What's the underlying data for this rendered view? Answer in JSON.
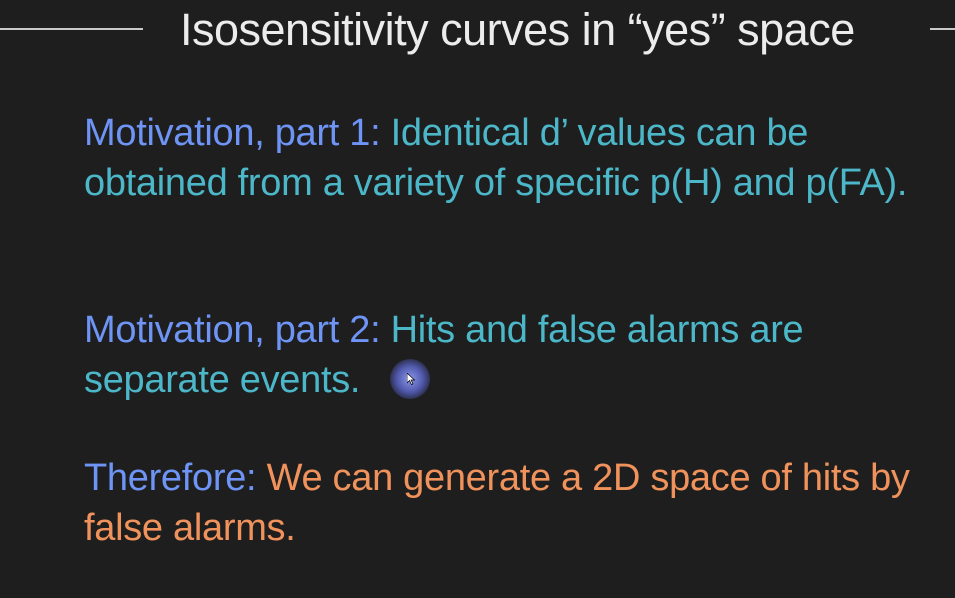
{
  "slide": {
    "title": "Isosensitivity curves in “yes” space",
    "paragraphs": [
      {
        "lead": "Motivation, part 1:",
        "body": "Identical d’ values can be obtained from a variety of specific p(H) and p(FA)."
      },
      {
        "lead": "Motivation, part 2:",
        "body": "Hits and false alarms are separate events."
      },
      {
        "lead": "Therefore:",
        "body": "We can generate a 2D space of hits by false alarms."
      }
    ]
  },
  "colors": {
    "background": "#1e1e1e",
    "title": "#ececec",
    "lead": "#6e94f5",
    "teal": "#4bb7c8",
    "orange": "#f0925b"
  },
  "cursor": {
    "icon": "pointer-arrow-icon"
  }
}
